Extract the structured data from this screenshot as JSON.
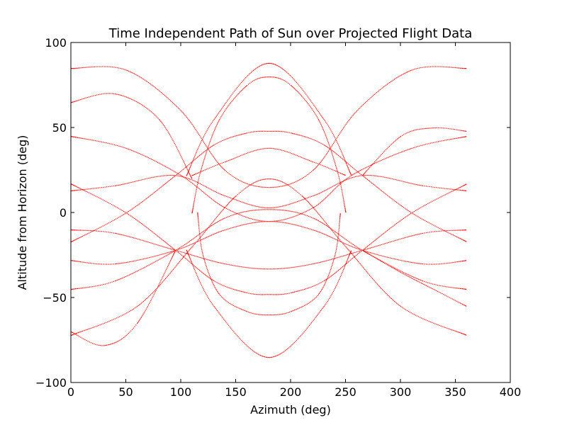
{
  "chart_data": {
    "type": "scatter",
    "title": "Time Independent Path of Sun over Projected Flight Data",
    "xlabel": "Azimuth (deg)",
    "ylabel": "Altitude from Horizon (deg)",
    "xlim": [
      0,
      400
    ],
    "ylim": [
      -100,
      100
    ],
    "xticks": [
      0,
      50,
      100,
      150,
      200,
      250,
      300,
      350,
      400
    ],
    "yticks": [
      -100,
      -50,
      0,
      50,
      100
    ],
    "xtick_labels": [
      "0",
      "50",
      "100",
      "150",
      "200",
      "250",
      "300",
      "350",
      "400"
    ],
    "ytick_labels": [
      "−100",
      "−50",
      "0",
      "50",
      "100"
    ],
    "grid": false,
    "marker_color": "#ff0000",
    "series": [
      {
        "x": [
          0,
          50,
          95,
          130,
          160,
          180,
          200,
          230,
          265,
          310,
          360
        ],
        "y": [
          17,
          0,
          -22,
          -40,
          -47,
          -48,
          -47,
          -40,
          -22,
          0,
          17
        ]
      },
      {
        "x": [
          0,
          50,
          95,
          130,
          160,
          180,
          200,
          230,
          265,
          310,
          360
        ],
        "y": [
          -17,
          0,
          22,
          40,
          47,
          48,
          47,
          40,
          22,
          0,
          -17
        ]
      },
      {
        "x": [
          0,
          40,
          95,
          140,
          180,
          220,
          265,
          320,
          360
        ],
        "y": [
          -28,
          -30,
          -22,
          -10,
          -5,
          -10,
          -22,
          -30,
          -28
        ]
      },
      {
        "x": [
          0,
          40,
          95,
          140,
          180,
          220,
          265,
          320,
          360
        ],
        "y": [
          13,
          16,
          22,
          10,
          3,
          10,
          22,
          16,
          13
        ]
      },
      {
        "x": [
          0,
          40,
          95,
          140,
          180,
          220,
          265,
          320,
          360
        ],
        "y": [
          -10,
          -12,
          -22,
          -30,
          -33,
          -30,
          -22,
          -12,
          -10
        ]
      },
      {
        "x": [
          0,
          50,
          100,
          140,
          180,
          220,
          255,
          310,
          360
        ],
        "y": [
          45,
          38,
          22,
          3,
          -5,
          3,
          22,
          38,
          45
        ]
      },
      {
        "x": [
          0,
          40,
          95,
          140,
          180,
          220,
          265,
          320,
          360
        ],
        "y": [
          -45,
          -40,
          -22,
          -3,
          2,
          -3,
          -22,
          -40,
          -45
        ]
      },
      {
        "x": [
          0,
          60,
          110,
          150,
          180,
          210,
          250,
          300,
          360
        ],
        "y": [
          -72,
          -55,
          -20,
          10,
          20,
          10,
          -20,
          -55,
          -72
        ]
      },
      {
        "x": [
          110,
          118,
          135,
          160,
          180,
          200,
          225,
          242,
          250
        ],
        "y": [
          0,
          25,
          55,
          75,
          80,
          75,
          55,
          25,
          0
        ]
      },
      {
        "x": [
          115,
          120,
          135,
          160,
          180,
          200,
          225,
          240,
          245
        ],
        "y": [
          0,
          -25,
          -48,
          -58,
          -60,
          -58,
          -48,
          -25,
          0
        ]
      },
      {
        "x": [
          105,
          130,
          180,
          230,
          255
        ],
        "y": [
          22,
          55,
          88,
          55,
          22
        ]
      },
      {
        "x": [
          105,
          130,
          180,
          230,
          255
        ],
        "y": [
          -22,
          -55,
          -85,
          -55,
          -22
        ]
      },
      {
        "x": [
          110,
          140,
          180,
          220,
          250
        ],
        "y": [
          22,
          30,
          38,
          30,
          22
        ]
      },
      {
        "x": [
          0,
          30,
          60,
          95
        ],
        "y": [
          -70,
          -78,
          -65,
          -22
        ]
      },
      {
        "x": [
          0,
          40,
          80,
          110
        ],
        "y": [
          65,
          70,
          55,
          20
        ]
      },
      {
        "x": [
          0,
          50,
          100,
          140,
          180,
          220,
          260,
          310,
          360
        ],
        "y": [
          85,
          84,
          60,
          25,
          15,
          25,
          60,
          84,
          85
        ]
      },
      {
        "x": [
          265,
          300,
          330,
          360
        ],
        "y": [
          22,
          45,
          50,
          48
        ]
      },
      {
        "x": [
          265,
          300,
          330,
          360
        ],
        "y": [
          -22,
          -35,
          -45,
          -55
        ]
      }
    ]
  }
}
